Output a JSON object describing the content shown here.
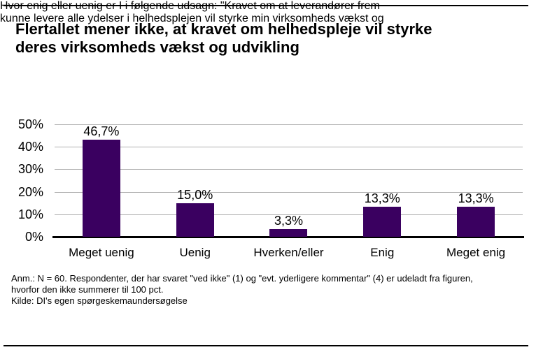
{
  "slide": {
    "title_lines": [
      "Flertallet mener ikke, at kravet om helhedspleje vil styrke",
      "deres virksomheds vækst og udvikling"
    ],
    "subtitle_lines": [
      "Hvor enig eller uenig er I i følgende udsagn: \"Kravet om at leverandører frem",
      "kunne levere alle ydelser i helhedsplejen vil styrke min virksomheds vækst og"
    ],
    "footnote_lines": [
      "Anm.: N = 60. Respondenter, der har svaret \"ved ikke\" (1) og \"evt. yderligere kommentar\" (4) er udeladt fra figuren,",
      "hvorfor den ikke summerer til 100 pct.",
      "Kilde: DI's egen spørgeskemaundersøgelse"
    ]
  },
  "chart_data": {
    "type": "bar",
    "title": "Flertallet mener ikke, at kravet om helhedspleje vil styrke deres virksomheds vækst og udvikling",
    "categories": [
      "Meget uenig",
      "Uenig",
      "Hverken/eller",
      "Enig",
      "Meget enig"
    ],
    "values": [
      46.7,
      15.0,
      3.3,
      13.3,
      13.3
    ],
    "value_labels": [
      "46,7%",
      "15,0%",
      "3,3%",
      "13,3%",
      "13,3%"
    ],
    "yticks": [
      "50%",
      "40%",
      "30%",
      "20%",
      "10%",
      "0%"
    ],
    "ylim": [
      0,
      50
    ],
    "xlabel": "",
    "ylabel": "",
    "grid": true,
    "legend": false,
    "bar_color": "#3A0060",
    "gridline_color": "#B0B0B0",
    "axis_color": "#000000"
  }
}
